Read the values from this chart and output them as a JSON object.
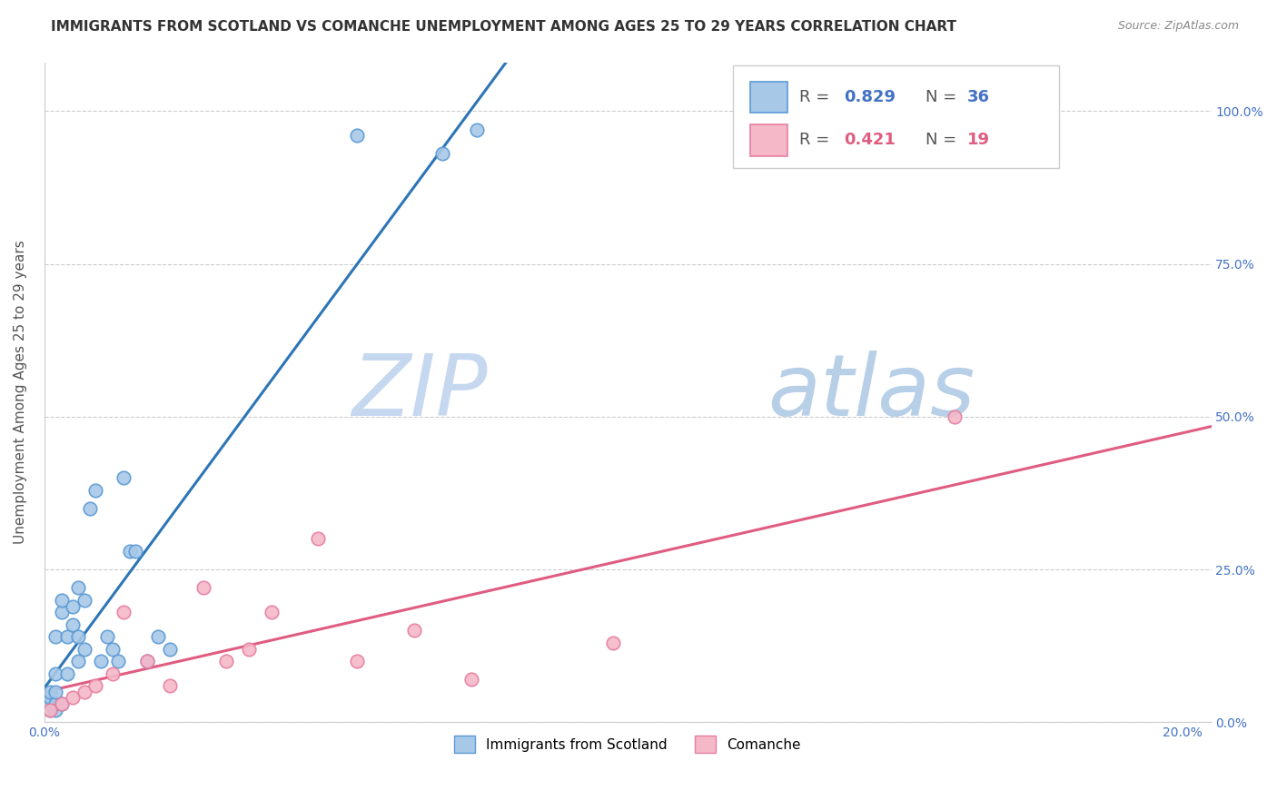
{
  "title": "IMMIGRANTS FROM SCOTLAND VS COMANCHE UNEMPLOYMENT AMONG AGES 25 TO 29 YEARS CORRELATION CHART",
  "source": "Source: ZipAtlas.com",
  "ylabel": "Unemployment Among Ages 25 to 29 years",
  "xlim": [
    0.0,
    0.205
  ],
  "ylim": [
    0.0,
    1.08
  ],
  "xticks": [
    0.0,
    0.04,
    0.08,
    0.12,
    0.16,
    0.2
  ],
  "xtick_labels": [
    "0.0%",
    "",
    "",
    "",
    "",
    "20.0%"
  ],
  "yticks": [
    0.0,
    0.25,
    0.5,
    0.75,
    1.0
  ],
  "ytick_right_labels": [
    "100.0%",
    "75.0%",
    "50.0%",
    "25.0%",
    "0.0%"
  ],
  "scotland_color": "#a8c8e8",
  "scotland_edge": "#5b9bd5",
  "comanche_color": "#f4b8c8",
  "comanche_edge": "#e87fa0",
  "trendline_scotland_color": "#2e75b6",
  "trendline_comanche_color": "#e05c80",
  "watermark_text": "ZIPatlas",
  "watermark_color": "#dce8f5",
  "background_color": "#ffffff",
  "grid_color": "#cccccc",
  "title_color": "#333333",
  "source_color": "#888888",
  "tick_color": "#4472c4",
  "ylabel_color": "#555555",
  "legend_r1_color": "#4472c4",
  "legend_n1_color": "#4472c4",
  "legend_r2_color": "#e05c80",
  "legend_n2_color": "#e05c80",
  "scotland_x": [
    0.001,
    0.001,
    0.001,
    0.001,
    0.002,
    0.002,
    0.002,
    0.002,
    0.002,
    0.003,
    0.003,
    0.003,
    0.004,
    0.004,
    0.005,
    0.005,
    0.006,
    0.006,
    0.006,
    0.007,
    0.007,
    0.008,
    0.009,
    0.01,
    0.011,
    0.012,
    0.013,
    0.014,
    0.015,
    0.016,
    0.018,
    0.02,
    0.022,
    0.055,
    0.07,
    0.076
  ],
  "scotland_y": [
    0.02,
    0.03,
    0.04,
    0.05,
    0.02,
    0.03,
    0.05,
    0.08,
    0.14,
    0.03,
    0.18,
    0.2,
    0.08,
    0.14,
    0.16,
    0.19,
    0.1,
    0.14,
    0.22,
    0.12,
    0.2,
    0.35,
    0.38,
    0.1,
    0.14,
    0.12,
    0.1,
    0.4,
    0.28,
    0.28,
    0.1,
    0.14,
    0.12,
    0.96,
    0.93,
    0.97
  ],
  "comanche_x": [
    0.001,
    0.003,
    0.005,
    0.007,
    0.009,
    0.012,
    0.014,
    0.018,
    0.022,
    0.028,
    0.032,
    0.036,
    0.04,
    0.048,
    0.055,
    0.065,
    0.075,
    0.1,
    0.16
  ],
  "comanche_y": [
    0.02,
    0.03,
    0.04,
    0.05,
    0.06,
    0.08,
    0.18,
    0.1,
    0.06,
    0.22,
    0.1,
    0.12,
    0.18,
    0.3,
    0.1,
    0.15,
    0.07,
    0.13,
    0.5
  ],
  "title_fontsize": 11,
  "source_fontsize": 9,
  "ylabel_fontsize": 11,
  "tick_fontsize": 10,
  "legend_fontsize": 13,
  "marker_size": 110,
  "trendline_lw": 2.2
}
